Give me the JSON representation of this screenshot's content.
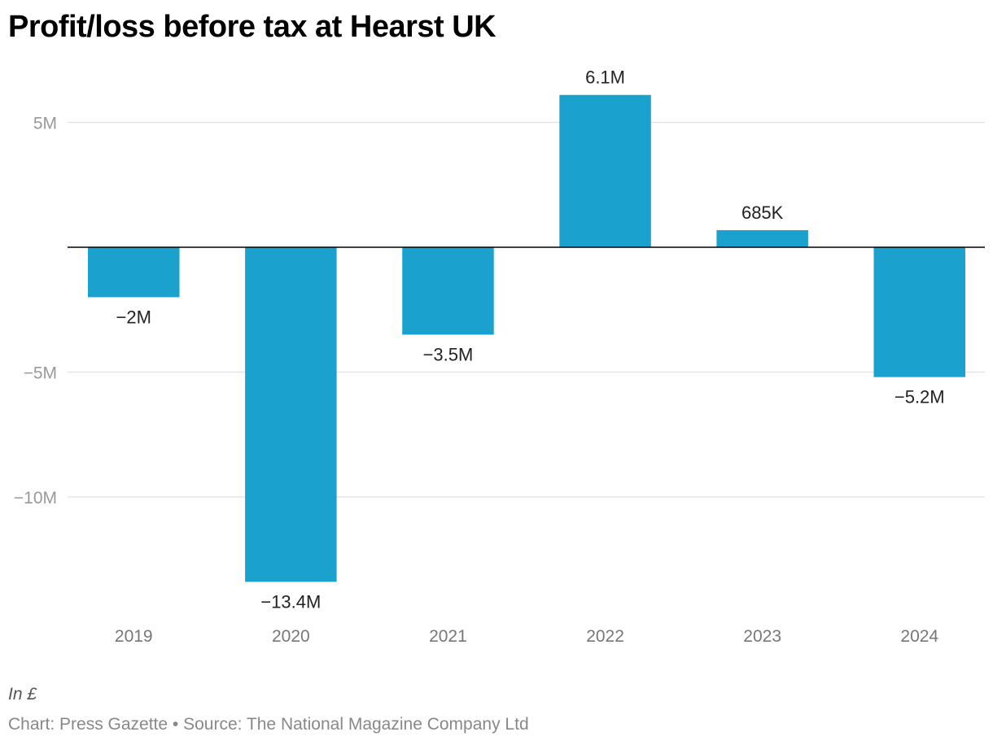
{
  "title": "Profit/loss before tax at Hearst UK",
  "note": "In £",
  "source": "Chart: Press Gazette • Source: The National Magazine Company Ltd",
  "chart_data": {
    "type": "bar",
    "title": "Profit/loss before tax at Hearst UK",
    "categories": [
      "2019",
      "2020",
      "2021",
      "2022",
      "2023",
      "2024"
    ],
    "values": [
      -2000000,
      -13400000,
      -3500000,
      6100000,
      685000,
      -5200000
    ],
    "data_labels": [
      "−2M",
      "−13.4M",
      "−3.5M",
      "6.1M",
      "685K",
      "−5.2M"
    ],
    "yticks": [
      5000000,
      0,
      -5000000,
      -10000000
    ],
    "ytick_labels": [
      "5M",
      "",
      "−5M",
      "−10M"
    ],
    "ylim": [
      -14500000,
      7000000
    ],
    "grid": true,
    "bar_color": "#1aa1ce",
    "xlabel": "",
    "ylabel": ""
  }
}
